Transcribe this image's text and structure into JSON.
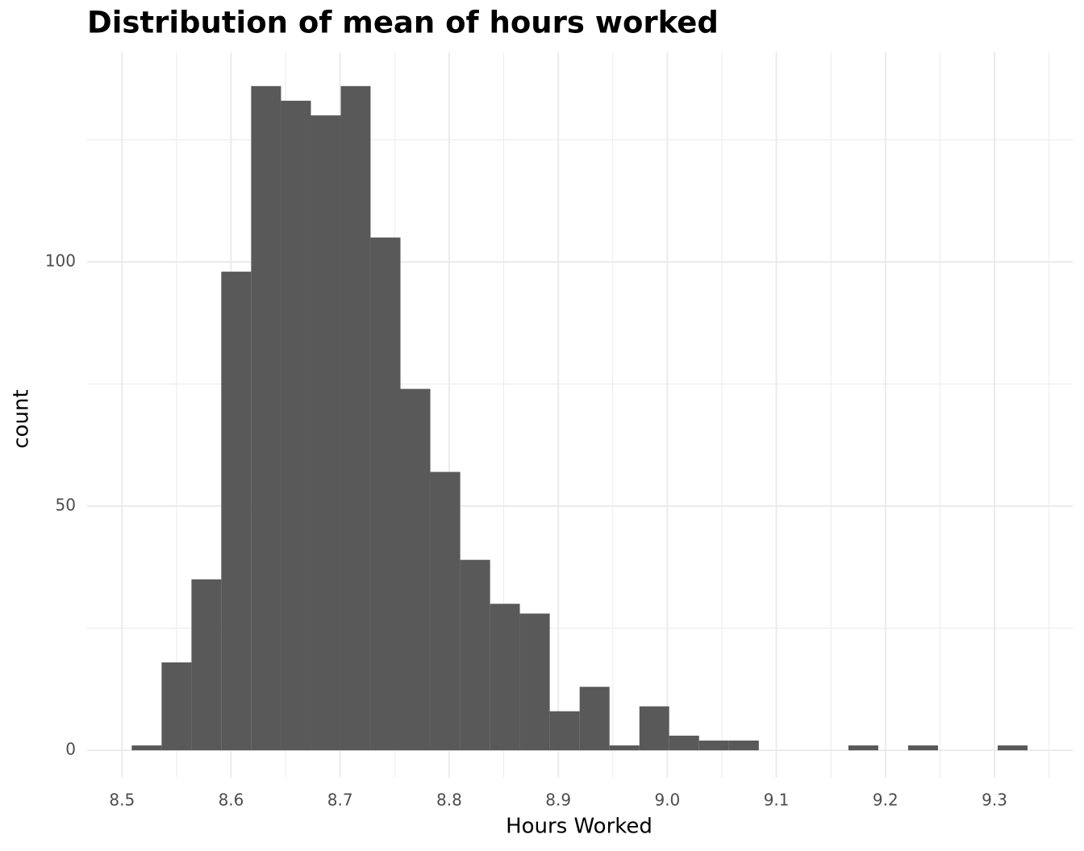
{
  "chart_data": {
    "type": "histogram",
    "title": "Distribution of mean of hours worked",
    "x_label": "Hours Worked",
    "y_label": "count",
    "bins": [
      8.5089,
      8.5363,
      8.5637,
      8.591,
      8.6184,
      8.6458,
      8.6732,
      8.7006,
      8.7279,
      8.7553,
      8.7827,
      8.8101,
      8.8375,
      8.8648,
      8.8922,
      8.9196,
      8.947,
      8.9744,
      9.0017,
      9.0291,
      9.0565,
      9.0839,
      9.1113,
      9.1386,
      9.166,
      9.1934,
      9.2208,
      9.2482,
      9.2755,
      9.3029,
      9.3303
    ],
    "counts": [
      1,
      18,
      35,
      98,
      136,
      133,
      130,
      136,
      105,
      74,
      57,
      39,
      30,
      28,
      8,
      13,
      1,
      9,
      3,
      2,
      2,
      0,
      0,
      0,
      1,
      0,
      1,
      0,
      0,
      1
    ],
    "color": "#595959",
    "xlim": [
      8.468,
      9.3717
    ],
    "ylim": [
      -5.6,
      142.9
    ],
    "xticks": [
      8.5,
      8.6,
      8.7,
      8.8,
      8.9,
      {
        "value": 9,
        "label": "9.0"
      },
      9.1,
      9.2,
      9.3
    ],
    "yticks": [
      0,
      50,
      100
    ],
    "x_minor_grid": [
      8.55,
      8.65,
      8.75,
      8.85,
      8.95,
      9.05,
      9.15,
      9.25,
      9.35
    ],
    "y_minor_grid": [
      25,
      75,
      125
    ],
    "grid": true
  }
}
